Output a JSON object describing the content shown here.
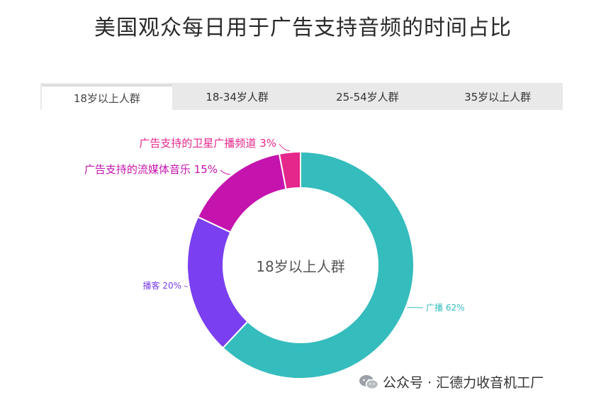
{
  "title": "美国观众每日用于广告支持音频的时间占比",
  "tabs": [
    {
      "label": "18岁以上人群",
      "active": true
    },
    {
      "label": "18-34岁人群",
      "active": false
    },
    {
      "label": "25-54岁人群",
      "active": false
    },
    {
      "label": "35岁以上人群",
      "active": false
    }
  ],
  "watermark": {
    "icon": "wechat-icon",
    "text": "公众号 · 汇德力收音机工厂"
  },
  "chart_data": {
    "type": "pie",
    "variant": "donut",
    "center_label": "18岁以上人群",
    "slices": [
      {
        "label": "广播",
        "value": 62,
        "display": "广播 62%",
        "color": "#35bcbd"
      },
      {
        "label": "播客",
        "value": 20,
        "display": "播客 20%",
        "color": "#7a3ff0"
      },
      {
        "label": "广告支持的流媒体音乐",
        "value": 15,
        "display": "广告支持的流媒体音乐 15%",
        "color": "#c513ad"
      },
      {
        "label": "广告支持的卫星广播频道",
        "value": 3,
        "display": "广告支持的卫星广播频道 3%",
        "color": "#e5268b"
      }
    ]
  }
}
